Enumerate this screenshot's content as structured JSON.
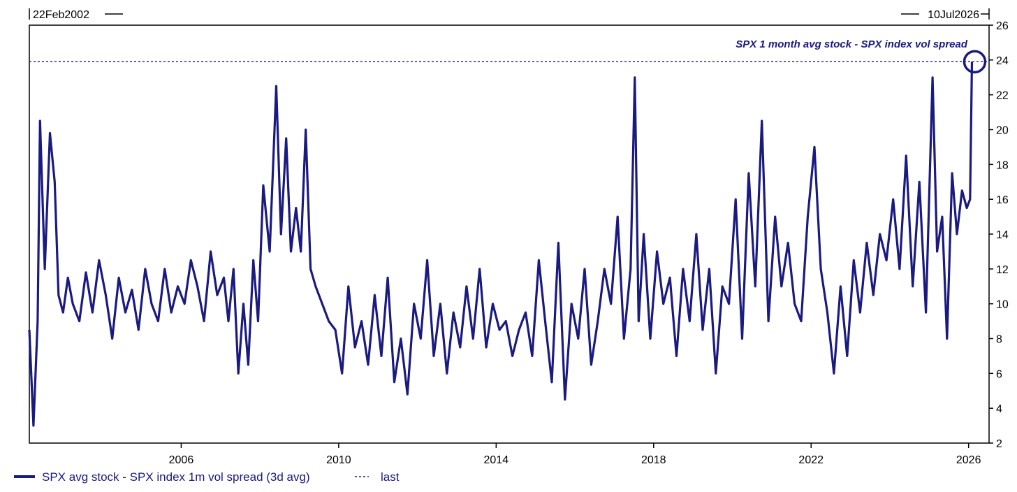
{
  "chart_data": {
    "type": "line",
    "start_label": "22Feb2002",
    "end_label": "10Jul2026",
    "annotation": "SPX 1 month avg stock - SPX index vol spread",
    "x_ticks": [
      "2006",
      "2010",
      "2014",
      "2018",
      "2022",
      "2026"
    ],
    "y_ticks": [
      "2",
      "4",
      "6",
      "8",
      "10",
      "12",
      "14",
      "16",
      "18",
      "20",
      "22",
      "24",
      "26"
    ],
    "ylim": [
      2,
      26
    ],
    "xlim": [
      "2002-02-22",
      "2026-07-10"
    ],
    "last_value": 23.9,
    "colors": {
      "series": "#1a1a80",
      "axis": "#000000"
    },
    "legend": {
      "series_label": "SPX avg stock - SPX index 1m vol spread (3d avg)",
      "dashed_label": "last"
    },
    "series": [
      {
        "x": [
          "2002-02-22",
          "2002-04-01",
          "2002-05-10",
          "2002-06-01",
          "2002-07-15",
          "2002-09-01",
          "2002-10-15",
          "2002-11-20",
          "2003-01-01",
          "2003-02-15",
          "2003-04-01",
          "2003-06-01",
          "2003-08-01",
          "2003-10-01",
          "2003-12-01",
          "2004-02-01",
          "2004-04-01",
          "2004-06-01",
          "2004-08-01",
          "2004-10-01",
          "2004-12-01",
          "2005-02-01",
          "2005-04-01",
          "2005-06-01",
          "2005-08-01",
          "2005-10-01",
          "2005-12-01",
          "2006-02-01",
          "2006-04-01",
          "2006-06-01",
          "2006-08-01",
          "2006-10-01",
          "2006-12-01",
          "2007-02-01",
          "2007-03-15",
          "2007-05-01",
          "2007-06-15",
          "2007-08-01",
          "2007-09-15",
          "2007-11-01",
          "2007-12-15",
          "2008-02-01",
          "2008-04-01",
          "2008-06-01",
          "2008-07-15",
          "2008-09-01",
          "2008-10-15",
          "2008-12-01",
          "2009-01-15",
          "2009-03-01",
          "2009-04-15",
          "2009-06-01",
          "2009-08-01",
          "2009-10-01",
          "2009-12-01",
          "2010-02-01",
          "2010-04-01",
          "2010-06-01",
          "2010-08-01",
          "2010-10-01",
          "2010-12-01",
          "2011-02-01",
          "2011-04-01",
          "2011-06-01",
          "2011-08-01",
          "2011-10-01",
          "2011-12-01",
          "2012-02-01",
          "2012-04-01",
          "2012-06-01",
          "2012-08-01",
          "2012-10-01",
          "2012-12-01",
          "2013-02-01",
          "2013-04-01",
          "2013-06-01",
          "2013-08-01",
          "2013-10-01",
          "2013-12-01",
          "2014-02-01",
          "2014-04-01",
          "2014-06-01",
          "2014-08-01",
          "2014-10-01",
          "2014-12-01",
          "2015-02-01",
          "2015-04-01",
          "2015-06-01",
          "2015-08-01",
          "2015-10-01",
          "2015-12-01",
          "2016-02-01",
          "2016-04-01",
          "2016-06-01",
          "2016-08-01",
          "2016-10-01",
          "2016-12-01",
          "2017-02-01",
          "2017-04-01",
          "2017-06-01",
          "2017-07-10",
          "2017-08-15",
          "2017-10-01",
          "2017-12-01",
          "2018-02-01",
          "2018-04-01",
          "2018-06-01",
          "2018-08-01",
          "2018-10-01",
          "2018-12-01",
          "2019-02-01",
          "2019-04-01",
          "2019-06-01",
          "2019-08-01",
          "2019-10-01",
          "2019-12-01",
          "2020-02-01",
          "2020-04-01",
          "2020-06-01",
          "2020-08-01",
          "2020-10-01",
          "2020-12-01",
          "2021-02-01",
          "2021-04-01",
          "2021-06-01",
          "2021-08-01",
          "2021-10-01",
          "2021-12-01",
          "2022-02-01",
          "2022-04-01",
          "2022-06-01",
          "2022-08-01",
          "2022-10-01",
          "2022-12-01",
          "2023-02-01",
          "2023-04-01",
          "2023-06-01",
          "2023-08-01",
          "2023-10-01",
          "2023-12-01",
          "2024-02-01",
          "2024-04-01",
          "2024-06-01",
          "2024-08-01",
          "2024-10-01",
          "2024-12-01",
          "2025-02-01",
          "2025-03-15",
          "2025-05-01",
          "2025-06-15",
          "2025-08-01",
          "2025-09-15",
          "2025-11-01",
          "2025-12-15",
          "2026-01-15",
          "2026-02-01"
        ],
        "values": [
          8.5,
          3.0,
          9.0,
          20.5,
          12.0,
          19.8,
          17.0,
          10.5,
          9.5,
          11.5,
          10.0,
          9.0,
          11.8,
          9.5,
          12.5,
          10.5,
          8.0,
          11.5,
          9.5,
          10.8,
          8.5,
          12.0,
          10.0,
          9.0,
          12.0,
          9.5,
          11.0,
          10.0,
          12.5,
          11.0,
          9.0,
          13.0,
          10.5,
          11.5,
          9.0,
          12.0,
          6.0,
          10.0,
          6.5,
          12.5,
          9.0,
          16.8,
          13.0,
          22.5,
          14.0,
          19.5,
          13.0,
          15.5,
          13.0,
          20.0,
          12.0,
          11.0,
          10.0,
          9.0,
          8.5,
          6.0,
          11.0,
          7.5,
          9.0,
          6.5,
          10.5,
          7.0,
          11.5,
          5.5,
          8.0,
          4.8,
          10.0,
          8.0,
          12.5,
          7.0,
          10.0,
          6.0,
          9.5,
          7.5,
          11.0,
          8.0,
          12.0,
          7.5,
          10.0,
          8.5,
          9.0,
          7.0,
          8.5,
          9.5,
          7.0,
          12.5,
          9.0,
          5.5,
          13.5,
          4.5,
          10.0,
          8.0,
          12.0,
          6.5,
          9.0,
          12.0,
          10.0,
          15.0,
          8.0,
          12.0,
          23.0,
          9.0,
          14.0,
          8.0,
          13.0,
          10.0,
          11.5,
          7.0,
          12.0,
          9.0,
          14.0,
          8.5,
          12.0,
          6.0,
          11.0,
          10.0,
          16.0,
          8.0,
          17.5,
          11.0,
          20.5,
          9.0,
          15.0,
          11.0,
          13.5,
          10.0,
          9.0,
          15.0,
          19.0,
          12.0,
          9.5,
          6.0,
          11.0,
          7.0,
          12.5,
          9.5,
          13.5,
          10.5,
          14.0,
          12.5,
          16.0,
          12.0,
          18.5,
          11.0,
          17.0,
          9.5,
          23.0,
          13.0,
          15.0,
          8.0,
          17.5,
          14.0,
          16.5,
          15.5,
          16.0,
          23.9
        ]
      }
    ]
  }
}
